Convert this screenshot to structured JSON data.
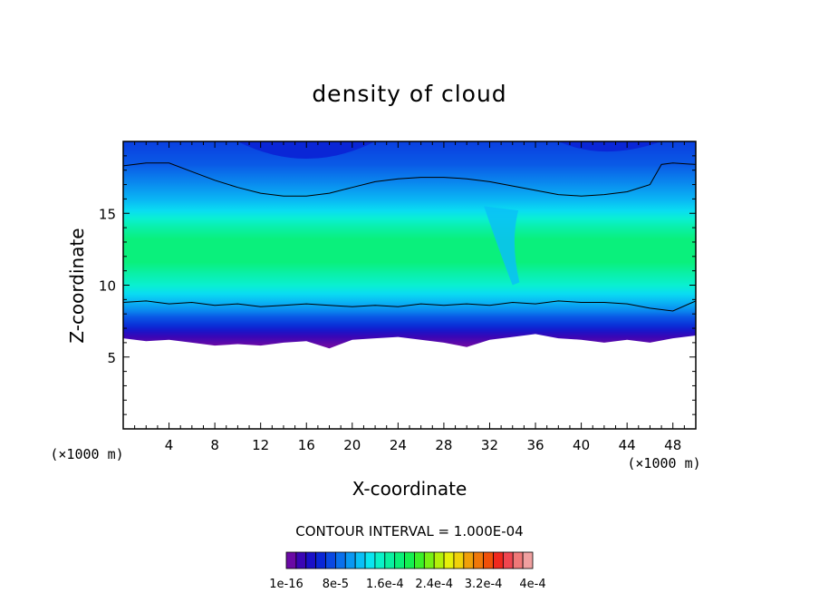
{
  "chart_data": {
    "type": "heatmap",
    "title": "density of cloud",
    "xlabel": "X-coordinate",
    "ylabel": "Z-coordinate",
    "x_unit_left": "(×1000 m)",
    "x_unit_right": "(×1000 m)",
    "xlim": [
      0,
      50
    ],
    "ylim": [
      0,
      20
    ],
    "xticks": [
      "4",
      "8",
      "12",
      "16",
      "20",
      "24",
      "28",
      "32",
      "36",
      "40",
      "44",
      "48"
    ],
    "yticks": [
      "5",
      "10",
      "15"
    ],
    "contour_interval_text": "CONTOUR INTERVAL = 1.000E-04",
    "colorbar": {
      "labels": [
        "1e-16",
        "8e-5",
        "1.6e-4",
        "2.4e-4",
        "3.2e-4",
        "4e-4"
      ],
      "colors": [
        "#6a0aa5",
        "#3a06b5",
        "#1a10c8",
        "#0a26d6",
        "#0a48e2",
        "#0a70ec",
        "#0a98f2",
        "#0ac0f6",
        "#0ae6f0",
        "#0af2c8",
        "#0af0a0",
        "#0af078",
        "#14f050",
        "#3cf028",
        "#78f014",
        "#b4f00a",
        "#e6f00a",
        "#f0d20a",
        "#f0a00a",
        "#f0780a",
        "#f0500a",
        "#f0281e",
        "#f04650",
        "#f07878",
        "#f0a0a0"
      ]
    },
    "cloud_base_profile": {
      "x": [
        0,
        2,
        4,
        6,
        8,
        10,
        12,
        14,
        16,
        18,
        20,
        22,
        24,
        26,
        28,
        30,
        32,
        34,
        36,
        38,
        40,
        42,
        44,
        46,
        48,
        50
      ],
      "z": [
        6.3,
        6.1,
        6.2,
        6.0,
        5.8,
        5.9,
        5.8,
        6.0,
        6.1,
        5.6,
        6.2,
        6.3,
        6.4,
        6.2,
        6.0,
        5.7,
        6.2,
        6.4,
        6.6,
        6.3,
        6.2,
        6.0,
        6.2,
        6.0,
        6.3,
        6.5
      ]
    },
    "lower_contour_profile": {
      "x": [
        0,
        2,
        4,
        6,
        8,
        10,
        12,
        14,
        16,
        18,
        20,
        22,
        24,
        26,
        28,
        30,
        32,
        34,
        36,
        38,
        40,
        42,
        44,
        46,
        48,
        50
      ],
      "z": [
        8.8,
        8.9,
        8.7,
        8.8,
        8.6,
        8.7,
        8.5,
        8.6,
        8.7,
        8.6,
        8.5,
        8.6,
        8.5,
        8.7,
        8.6,
        8.7,
        8.6,
        8.8,
        8.7,
        8.9,
        8.8,
        8.8,
        8.7,
        8.4,
        8.2,
        8.9
      ]
    },
    "upper_contour_profile": {
      "x": [
        0,
        2,
        4,
        6,
        8,
        10,
        12,
        14,
        16,
        18,
        20,
        22,
        24,
        26,
        28,
        30,
        32,
        34,
        36,
        38,
        40,
        42,
        44,
        46,
        47,
        48,
        50
      ],
      "z": [
        18.3,
        18.5,
        18.5,
        17.9,
        17.3,
        16.8,
        16.4,
        16.2,
        16.2,
        16.4,
        16.8,
        17.2,
        17.4,
        17.5,
        17.5,
        17.4,
        17.2,
        16.9,
        16.6,
        16.3,
        16.2,
        16.3,
        16.5,
        17.0,
        18.4,
        18.5,
        18.4
      ]
    },
    "grid": false
  }
}
